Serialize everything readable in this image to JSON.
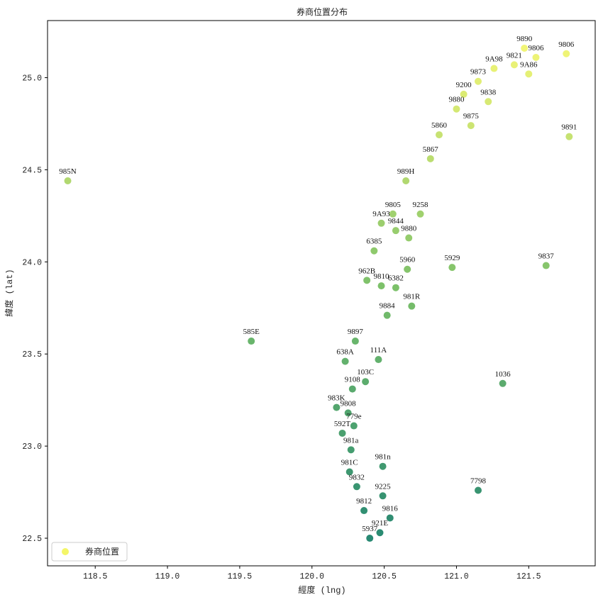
{
  "chart_data": {
    "type": "scatter",
    "title": "券商位置分布",
    "xlabel": "經度 (lng)",
    "ylabel": "緯度 (lat)",
    "xlim": [
      118.17,
      121.96
    ],
    "ylim": [
      22.35,
      25.31
    ],
    "x_ticks": [
      "118.5",
      "119.0",
      "119.5",
      "120.0",
      "120.5",
      "121.0",
      "121.5"
    ],
    "y_ticks": [
      "22.5",
      "23.0",
      "23.5",
      "24.0",
      "24.5",
      "25.0"
    ],
    "legend": {
      "label": "券商位置",
      "position": "lower-left"
    },
    "colormap": {
      "low": "#0e7a64",
      "mid": "#6ab85a",
      "high": "#f4f668"
    },
    "points": [
      {
        "x": 118.31,
        "y": 24.44,
        "label": "985N"
      },
      {
        "x": 119.58,
        "y": 23.57,
        "label": "585E"
      },
      {
        "x": 121.32,
        "y": 23.34,
        "label": "1036"
      },
      {
        "x": 121.62,
        "y": 23.98,
        "label": "9837"
      },
      {
        "x": 121.78,
        "y": 24.68,
        "label": "9891"
      },
      {
        "x": 121.76,
        "y": 25.13,
        "label": "9806"
      },
      {
        "x": 121.15,
        "y": 22.76,
        "label": "7798"
      },
      {
        "x": 120.97,
        "y": 23.97,
        "label": "5929"
      },
      {
        "x": 120.69,
        "y": 23.76,
        "label": "981R"
      },
      {
        "x": 120.49,
        "y": 22.89,
        "label": "981n"
      },
      {
        "x": 120.37,
        "y": 23.35,
        "label": "103C"
      },
      {
        "x": 120.65,
        "y": 24.44,
        "label": "989H"
      },
      {
        "x": 120.82,
        "y": 24.56,
        "label": "5867"
      },
      {
        "x": 120.88,
        "y": 24.69,
        "label": "5860"
      },
      {
        "x": 121.1,
        "y": 24.74,
        "label": "9875"
      },
      {
        "x": 121.22,
        "y": 24.87,
        "label": "9838"
      },
      {
        "x": 121.0,
        "y": 24.83,
        "label": "9880"
      },
      {
        "x": 121.05,
        "y": 24.91,
        "label": "9200"
      },
      {
        "x": 121.15,
        "y": 24.98,
        "label": "9873"
      },
      {
        "x": 121.26,
        "y": 25.05,
        "label": "9A98"
      },
      {
        "x": 121.4,
        "y": 25.07,
        "label": "9821"
      },
      {
        "x": 121.47,
        "y": 25.16,
        "label": "9890"
      },
      {
        "x": 121.55,
        "y": 25.11,
        "label": "9806"
      },
      {
        "x": 121.5,
        "y": 25.02,
        "label": "9A86"
      },
      {
        "x": 120.3,
        "y": 23.57,
        "label": "9897"
      },
      {
        "x": 120.23,
        "y": 23.46,
        "label": "638A"
      },
      {
        "x": 120.46,
        "y": 23.47,
        "label": "111A"
      },
      {
        "x": 120.28,
        "y": 23.31,
        "label": "9108"
      },
      {
        "x": 120.17,
        "y": 23.21,
        "label": "983K"
      },
      {
        "x": 120.25,
        "y": 23.18,
        "label": "9808"
      },
      {
        "x": 120.29,
        "y": 23.11,
        "label": "779e"
      },
      {
        "x": 120.21,
        "y": 23.07,
        "label": "592T"
      },
      {
        "x": 120.27,
        "y": 22.98,
        "label": "981a"
      },
      {
        "x": 120.26,
        "y": 22.86,
        "label": "981C"
      },
      {
        "x": 120.31,
        "y": 22.78,
        "label": "9832"
      },
      {
        "x": 120.49,
        "y": 22.73,
        "label": "9225"
      },
      {
        "x": 120.54,
        "y": 22.61,
        "label": "9816"
      },
      {
        "x": 120.47,
        "y": 22.53,
        "label": "921E"
      },
      {
        "x": 120.4,
        "y": 22.5,
        "label": "5937"
      },
      {
        "x": 120.36,
        "y": 22.65,
        "label": "9812"
      },
      {
        "x": 120.38,
        "y": 23.9,
        "label": "962B"
      },
      {
        "x": 120.58,
        "y": 23.86,
        "label": "6382"
      },
      {
        "x": 120.48,
        "y": 23.87,
        "label": "9810"
      },
      {
        "x": 120.43,
        "y": 24.06,
        "label": "6385"
      },
      {
        "x": 120.66,
        "y": 23.96,
        "label": "5960"
      },
      {
        "x": 120.67,
        "y": 24.13,
        "label": "9880"
      },
      {
        "x": 120.56,
        "y": 24.26,
        "label": "9805"
      },
      {
        "x": 120.75,
        "y": 24.26,
        "label": "9258"
      },
      {
        "x": 120.48,
        "y": 24.21,
        "label": "9A93"
      },
      {
        "x": 120.58,
        "y": 24.17,
        "label": "9844"
      },
      {
        "x": 120.52,
        "y": 23.71,
        "label": "9884"
      }
    ]
  }
}
